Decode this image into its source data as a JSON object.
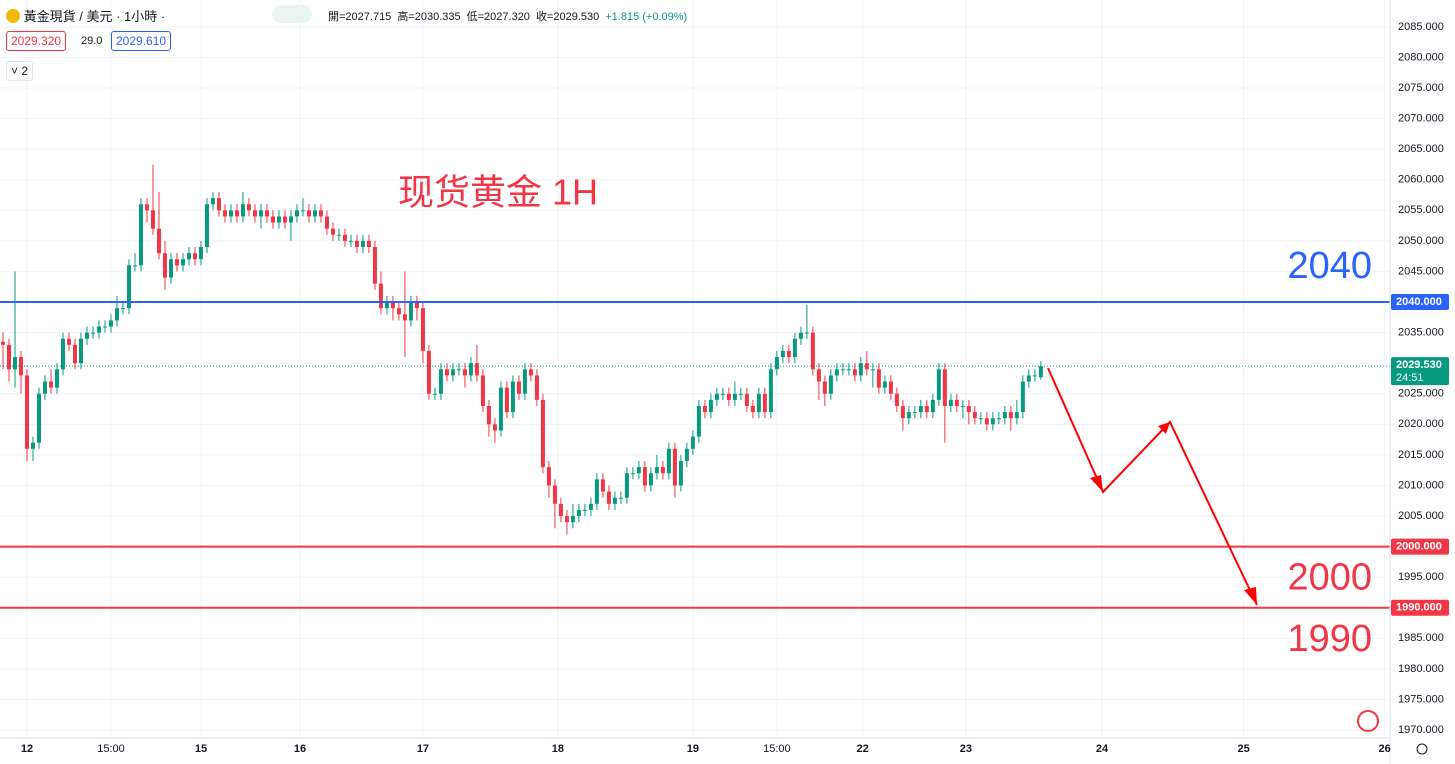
{
  "header": {
    "symbol": "黃金現貨 / 美元 · 1小時 ·",
    "ohlc": [
      "開=2027.715",
      "高=2030.335",
      "低=2027.320",
      "收=2029.530"
    ],
    "change": "+1.815 (+0.09%)",
    "bid": "2029.320",
    "spread": "29.0",
    "ask": "2029.610",
    "indicators": "2"
  },
  "chart_data": {
    "type": "candlestick",
    "title": "现货黄金 1H",
    "up_color": "#089981",
    "down_color": "#f23645",
    "xlim": [
      -0.5,
      231.2
    ],
    "xticks": [
      {
        "value": 4,
        "label": "12"
      },
      {
        "value": 18,
        "label": "15:00"
      },
      {
        "value": 33,
        "label": "15"
      },
      {
        "value": 49.5,
        "label": "16"
      },
      {
        "value": 70,
        "label": "17"
      },
      {
        "value": 92.5,
        "label": "18"
      },
      {
        "value": 115,
        "label": "19"
      },
      {
        "value": 129,
        "label": "15:00"
      },
      {
        "value": 143.3,
        "label": "22"
      },
      {
        "value": 160.5,
        "label": "23"
      },
      {
        "value": 183.2,
        "label": "24"
      },
      {
        "value": 206.8,
        "label": "25"
      },
      {
        "value": 230.3,
        "label": "26"
      }
    ],
    "ylim": [
      1968.7,
      2089.4
    ],
    "yticks": [
      {
        "value": 1970,
        "label": "1970.000"
      },
      {
        "value": 1975,
        "label": "1975.000"
      },
      {
        "value": 1980,
        "label": "1980.000"
      },
      {
        "value": 1985,
        "label": "1985.000"
      },
      {
        "value": 1990,
        "label": "1990.000"
      },
      {
        "value": 1995,
        "label": "1995.000"
      },
      {
        "value": 2000,
        "label": "2000.000"
      },
      {
        "value": 2005,
        "label": "2005.000"
      },
      {
        "value": 2010,
        "label": "2010.000"
      },
      {
        "value": 2015,
        "label": "2015.000"
      },
      {
        "value": 2020,
        "label": "2020.000"
      },
      {
        "value": 2025,
        "label": "2025.000"
      },
      {
        "value": 2030,
        "label": "2030.000"
      },
      {
        "value": 2035,
        "label": "2035.000"
      },
      {
        "value": 2040,
        "label": "2040.000"
      },
      {
        "value": 2045,
        "label": "2045.000"
      },
      {
        "value": 2050,
        "label": "2050.000"
      },
      {
        "value": 2055,
        "label": "2055.000"
      },
      {
        "value": 2060,
        "label": "2060.000"
      },
      {
        "value": 2065,
        "label": "2065.000"
      },
      {
        "value": 2070,
        "label": "2070.000"
      },
      {
        "value": 2075,
        "label": "2075.000"
      },
      {
        "value": 2080,
        "label": "2080.000"
      },
      {
        "value": 2085,
        "label": "2085.000"
      }
    ],
    "grid": true,
    "hlines": [
      {
        "value": 2040,
        "label": "2040.000",
        "annotation": "2040",
        "color": "#2962ff"
      },
      {
        "value": 2000,
        "label": "2000.000",
        "annotation": "2000",
        "color": "#f23645"
      },
      {
        "value": 1990,
        "label": "1990.000",
        "annotation": "1990",
        "color": "#f23645"
      }
    ],
    "last_price": {
      "value": 2029.53,
      "label": "2029.530",
      "countdown": "24:51"
    },
    "open": [
      2033.5,
      2033,
      2029,
      2031,
      2028,
      2016,
      2017,
      2025,
      2027,
      2026,
      2029,
      2034,
      2033,
      2030,
      2034,
      2035,
      2035,
      2036,
      2036,
      2037,
      2039,
      2039,
      2046,
      2046,
      2056,
      2055,
      2052,
      2048,
      2044,
      2047,
      2046,
      2047,
      2048,
      2047,
      2049,
      2056,
      2057,
      2055,
      2054,
      2055,
      2054,
      2056,
      2055,
      2054,
      2055,
      2054,
      2053,
      2054,
      2053,
      2054,
      2055,
      2055,
      2054,
      2055,
      2054,
      2052,
      2051,
      2051,
      2050,
      2050,
      2049,
      2050,
      2049,
      2043,
      2039,
      2040,
      2039,
      2038,
      2037,
      2040,
      2039,
      2032,
      2025,
      2025,
      2029,
      2028,
      2029,
      2029,
      2028,
      2030,
      2028,
      2023,
      2020,
      2019,
      2026,
      2022,
      2027,
      2025,
      2029,
      2028,
      2024,
      2013,
      2010,
      2007,
      2005,
      2004,
      2005,
      2006,
      2006,
      2007,
      2011,
      2009,
      2007,
      2008,
      2008,
      2012,
      2012,
      2013,
      2010,
      2012,
      2013,
      2012,
      2016,
      2010,
      2014,
      2016,
      2018,
      2023,
      2022,
      2024,
      2025,
      2025,
      2024,
      2025,
      2025,
      2023,
      2022,
      2025,
      2022,
      2029,
      2031,
      2032,
      2031,
      2034,
      2035,
      2035,
      2029,
      2027,
      2025,
      2028,
      2029,
      2029,
      2029,
      2028,
      2030,
      2029,
      2029,
      2026,
      2027,
      2025,
      2023,
      2021,
      2022,
      2022,
      2023,
      2022,
      2024,
      2029,
      2023,
      2024,
      2023,
      2023,
      2022,
      2021,
      2021,
      2020,
      2021,
      2021,
      2022,
      2021,
      2022,
      2027,
      2028,
      2027.715
    ],
    "high": [
      2035,
      2034,
      2045,
      2032,
      2029,
      2018,
      2026,
      2028,
      2029,
      2030,
      2035,
      2035,
      2034,
      2035,
      2036,
      2036,
      2037,
      2037,
      2038,
      2041,
      2040,
      2047,
      2048,
      2057,
      2057,
      2062.5,
      2058,
      2050,
      2048,
      2048,
      2048,
      2049,
      2049,
      2050,
      2057,
      2058,
      2058,
      2056,
      2056,
      2056,
      2058,
      2057,
      2056,
      2056,
      2056,
      2055,
      2055,
      2055,
      2055,
      2056,
      2057,
      2056,
      2056,
      2056,
      2055,
      2053,
      2052,
      2052,
      2051,
      2051,
      2051,
      2051,
      2050,
      2045,
      2041,
      2041,
      2040,
      2045,
      2041,
      2041,
      2040,
      2033,
      2026,
      2030,
      2030,
      2030,
      2030,
      2030,
      2031,
      2033,
      2029,
      2024,
      2021,
      2027,
      2027,
      2028,
      2028,
      2030,
      2030,
      2029,
      2025,
      2014,
      2011,
      2008,
      2006,
      2007,
      2007,
      2007,
      2008,
      2012,
      2012,
      2010,
      2009,
      2009,
      2013,
      2013,
      2014,
      2014,
      2013,
      2015,
      2014,
      2017,
      2017,
      2015,
      2017,
      2019,
      2024,
      2024,
      2025,
      2026,
      2026,
      2026,
      2027,
      2026,
      2026,
      2024,
      2026,
      2026,
      2030,
      2032,
      2033,
      2033,
      2035,
      2036,
      2039.5,
      2036,
      2030,
      2028,
      2029,
      2030,
      2030,
      2030,
      2030,
      2031,
      2032,
      2030,
      2030,
      2028,
      2028,
      2026,
      2024,
      2023,
      2023,
      2024,
      2024,
      2025,
      2030,
      2030,
      2025,
      2025,
      2024,
      2024,
      2023,
      2022,
      2022,
      2022,
      2022,
      2023,
      2023,
      2024,
      2028,
      2029,
      2029,
      2030.335
    ],
    "low": [
      2029,
      2027,
      2026,
      2025,
      2014,
      2014,
      2016,
      2024,
      2025,
      2025,
      2028,
      2032,
      2029,
      2029,
      2033,
      2034,
      2034,
      2035,
      2035,
      2036,
      2038,
      2038,
      2045,
      2045,
      2053,
      2051,
      2047,
      2042,
      2043,
      2045,
      2045,
      2046,
      2046,
      2046,
      2048,
      2055,
      2054,
      2053,
      2053,
      2053,
      2053,
      2054,
      2053,
      2052,
      2053,
      2052,
      2052,
      2052,
      2050,
      2053,
      2054,
      2053,
      2053,
      2053,
      2051,
      2050,
      2050,
      2049,
      2049,
      2048,
      2048,
      2048,
      2042,
      2038,
      2038,
      2037,
      2037,
      2031,
      2036,
      2037,
      2030,
      2024,
      2024,
      2024,
      2027,
      2027,
      2028,
      2026,
      2027,
      2027,
      2022,
      2018,
      2017,
      2018,
      2021,
      2021,
      2024,
      2024,
      2027,
      2023,
      2012,
      2008,
      2003,
      2004,
      2002,
      2003,
      2004,
      2005,
      2005,
      2006,
      2008,
      2006,
      2006,
      2007,
      2007,
      2011,
      2011,
      2009,
      2009,
      2011,
      2011,
      2011,
      2008,
      2009,
      2013,
      2015,
      2017,
      2021,
      2021,
      2023,
      2024,
      2023,
      2023,
      2024,
      2022,
      2021,
      2021,
      2021,
      2021,
      2028,
      2030,
      2030,
      2030,
      2033,
      2034,
      2028,
      2024,
      2023,
      2024,
      2027,
      2028,
      2028,
      2027,
      2027,
      2028,
      2026,
      2025,
      2025,
      2024,
      2022,
      2019,
      2020,
      2021,
      2021,
      2021,
      2021,
      2023,
      2017,
      2022,
      2022,
      2021,
      2020,
      2020,
      2020,
      2019,
      2019,
      2020,
      2020,
      2019,
      2020,
      2021,
      2026,
      2027,
      2027.32
    ],
    "close": [
      2033,
      2029,
      2031,
      2028,
      2016,
      2017,
      2025,
      2027,
      2026,
      2029,
      2034,
      2033,
      2030,
      2034,
      2035,
      2035,
      2036,
      2036,
      2037,
      2039,
      2039,
      2046,
      2046,
      2056,
      2055,
      2052,
      2048,
      2044,
      2047,
      2046,
      2047,
      2048,
      2047,
      2049,
      2056,
      2057,
      2055,
      2054,
      2055,
      2054,
      2056,
      2055,
      2054,
      2055,
      2054,
      2053,
      2054,
      2053,
      2054,
      2055,
      2055,
      2054,
      2055,
      2054,
      2052,
      2051,
      2051,
      2050,
      2050,
      2049,
      2050,
      2049,
      2043,
      2039,
      2040,
      2039,
      2038,
      2037,
      2040,
      2039,
      2032,
      2025,
      2025,
      2029,
      2028,
      2029,
      2029,
      2028,
      2030,
      2028,
      2023,
      2020,
      2019,
      2026,
      2022,
      2027,
      2025,
      2029,
      2028,
      2024,
      2013,
      2010,
      2007,
      2005,
      2004,
      2005,
      2006,
      2006,
      2007,
      2011,
      2009,
      2007,
      2008,
      2008,
      2012,
      2012,
      2013,
      2010,
      2012,
      2013,
      2012,
      2016,
      2010,
      2014,
      2016,
      2018,
      2023,
      2022,
      2024,
      2025,
      2025,
      2024,
      2025,
      2025,
      2023,
      2022,
      2025,
      2022,
      2029,
      2031,
      2032,
      2031,
      2034,
      2035,
      2035,
      2029,
      2027,
      2025,
      2028,
      2029,
      2029,
      2029,
      2028,
      2030,
      2029,
      2029,
      2026,
      2027,
      2025,
      2023,
      2021,
      2022,
      2022,
      2023,
      2022,
      2024,
      2029,
      2023,
      2024,
      2023,
      2023,
      2022,
      2021,
      2021,
      2020,
      2021,
      2021,
      2022,
      2021,
      2022,
      2027,
      2028,
      2028,
      2029.53
    ]
  }
}
